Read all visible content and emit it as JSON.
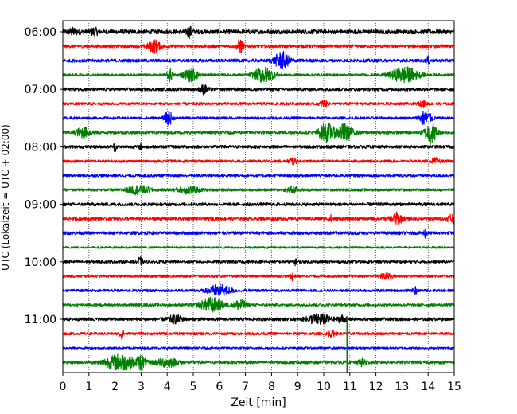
{
  "chart_data": {
    "type": "line",
    "title": "",
    "xlabel": "Zeit  [min]",
    "ylabel": "UTC (Lokalzeit = UTC + 02:00)",
    "xlim": [
      0,
      15
    ],
    "x_ticks": [
      0,
      1,
      2,
      3,
      4,
      5,
      6,
      7,
      8,
      9,
      10,
      11,
      12,
      13,
      14,
      15
    ],
    "x_tick_labels": [
      "0",
      "1",
      "2",
      "3",
      "4",
      "5",
      "6",
      "7",
      "8",
      "9",
      "10",
      "11",
      "12",
      "13",
      "14",
      "15"
    ],
    "y_tick_labels": [
      {
        "label": "06:00",
        "row": 0
      },
      {
        "label": "07:00",
        "row": 4
      },
      {
        "label": "08:00",
        "row": 8
      },
      {
        "label": "09:00",
        "row": 12
      },
      {
        "label": "10:00",
        "row": 16
      },
      {
        "label": "11:00",
        "row": 20
      }
    ],
    "grid": {
      "x": true,
      "style": "dotted"
    },
    "legend": "none",
    "row_colors": [
      "#000000",
      "#ff0000",
      "#0000ff",
      "#008000"
    ],
    "rows": [
      {
        "start": "06:00",
        "color": "#000000",
        "base_amp": 0.16,
        "events": [
          {
            "t": 0.4,
            "a": 0.2,
            "w": 0.15
          },
          {
            "t": 1.2,
            "a": 0.25,
            "w": 0.1
          },
          {
            "t": 4.85,
            "a": 0.35,
            "w": 0.08
          }
        ]
      },
      {
        "start": "06:15",
        "color": "#ff0000",
        "base_amp": 0.12,
        "events": [
          {
            "t": 3.5,
            "a": 0.45,
            "w": 0.15
          },
          {
            "t": 6.8,
            "a": 0.5,
            "w": 0.08
          }
        ]
      },
      {
        "start": "06:30",
        "color": "#0000ff",
        "base_amp": 0.12,
        "events": [
          {
            "t": 8.4,
            "a": 0.6,
            "w": 0.2
          },
          {
            "t": 14.0,
            "a": 0.25,
            "w": 0.05
          }
        ]
      },
      {
        "start": "06:45",
        "color": "#008000",
        "base_amp": 0.1,
        "events": [
          {
            "t": 4.1,
            "a": 0.5,
            "w": 0.06
          },
          {
            "t": 4.9,
            "a": 0.45,
            "w": 0.2
          },
          {
            "t": 7.7,
            "a": 0.55,
            "w": 0.25
          },
          {
            "t": 13.1,
            "a": 0.55,
            "w": 0.35
          }
        ]
      },
      {
        "start": "07:00",
        "color": "#000000",
        "base_amp": 0.12,
        "events": [
          {
            "t": 5.4,
            "a": 0.3,
            "w": 0.1
          }
        ]
      },
      {
        "start": "07:15",
        "color": "#ff0000",
        "base_amp": 0.1,
        "events": [
          {
            "t": 10.0,
            "a": 0.25,
            "w": 0.1
          },
          {
            "t": 13.8,
            "a": 0.2,
            "w": 0.1
          }
        ]
      },
      {
        "start": "07:30",
        "color": "#0000ff",
        "base_amp": 0.1,
        "events": [
          {
            "t": 4.05,
            "a": 0.5,
            "w": 0.1
          },
          {
            "t": 13.9,
            "a": 0.55,
            "w": 0.15
          }
        ]
      },
      {
        "start": "07:45",
        "color": "#008000",
        "base_amp": 0.12,
        "events": [
          {
            "t": 0.8,
            "a": 0.35,
            "w": 0.2
          },
          {
            "t": 10.1,
            "a": 0.65,
            "w": 0.2
          },
          {
            "t": 10.8,
            "a": 0.6,
            "w": 0.2
          },
          {
            "t": 14.1,
            "a": 0.8,
            "w": 0.15
          }
        ]
      },
      {
        "start": "08:00",
        "color": "#000000",
        "base_amp": 0.12,
        "events": [
          {
            "t": 2.0,
            "a": 0.3,
            "w": 0.04
          },
          {
            "t": 3.0,
            "a": 0.25,
            "w": 0.04
          }
        ]
      },
      {
        "start": "08:15",
        "color": "#ff0000",
        "base_amp": 0.1,
        "events": [
          {
            "t": 8.8,
            "a": 0.25,
            "w": 0.1
          },
          {
            "t": 14.3,
            "a": 0.2,
            "w": 0.1
          }
        ]
      },
      {
        "start": "08:30",
        "color": "#0000ff",
        "base_amp": 0.1,
        "events": []
      },
      {
        "start": "08:45",
        "color": "#008000",
        "base_amp": 0.1,
        "events": [
          {
            "t": 2.9,
            "a": 0.3,
            "w": 0.3
          },
          {
            "t": 4.8,
            "a": 0.25,
            "w": 0.3
          },
          {
            "t": 8.8,
            "a": 0.25,
            "w": 0.15
          }
        ]
      },
      {
        "start": "09:00",
        "color": "#000000",
        "base_amp": 0.12,
        "events": []
      },
      {
        "start": "09:15",
        "color": "#ff0000",
        "base_amp": 0.12,
        "events": [
          {
            "t": 10.3,
            "a": 0.25,
            "w": 0.05
          },
          {
            "t": 12.8,
            "a": 0.4,
            "w": 0.15
          },
          {
            "t": 14.9,
            "a": 0.35,
            "w": 0.1
          }
        ]
      },
      {
        "start": "09:30",
        "color": "#0000ff",
        "base_amp": 0.12,
        "events": [
          {
            "t": 13.9,
            "a": 0.3,
            "w": 0.05
          }
        ]
      },
      {
        "start": "09:45",
        "color": "#008000",
        "base_amp": 0.08,
        "events": []
      },
      {
        "start": "10:00",
        "color": "#000000",
        "base_amp": 0.1,
        "events": [
          {
            "t": 2.95,
            "a": 0.3,
            "w": 0.08
          },
          {
            "t": 8.9,
            "a": 0.2,
            "w": 0.05
          }
        ]
      },
      {
        "start": "10:15",
        "color": "#ff0000",
        "base_amp": 0.1,
        "events": [
          {
            "t": 8.8,
            "a": 0.25,
            "w": 0.05
          },
          {
            "t": 12.4,
            "a": 0.2,
            "w": 0.15
          }
        ]
      },
      {
        "start": "10:30",
        "color": "#0000ff",
        "base_amp": 0.1,
        "events": [
          {
            "t": 6.0,
            "a": 0.4,
            "w": 0.3
          },
          {
            "t": 13.5,
            "a": 0.25,
            "w": 0.05
          }
        ]
      },
      {
        "start": "10:45",
        "color": "#008000",
        "base_amp": 0.1,
        "events": [
          {
            "t": 5.7,
            "a": 0.5,
            "w": 0.3
          },
          {
            "t": 6.8,
            "a": 0.4,
            "w": 0.15
          }
        ]
      },
      {
        "start": "11:00",
        "color": "#000000",
        "base_amp": 0.12,
        "events": [
          {
            "t": 4.3,
            "a": 0.25,
            "w": 0.2
          },
          {
            "t": 9.8,
            "a": 0.35,
            "w": 0.3
          },
          {
            "t": 10.7,
            "a": 0.25,
            "w": 0.1
          }
        ]
      },
      {
        "start": "11:15",
        "color": "#ff0000",
        "base_amp": 0.1,
        "events": [
          {
            "t": 2.25,
            "a": 0.4,
            "w": 0.05
          },
          {
            "t": 10.3,
            "a": 0.2,
            "w": 0.1
          }
        ]
      },
      {
        "start": "11:30",
        "color": "#0000ff",
        "base_amp": 0.08,
        "events": []
      },
      {
        "start": "11:45",
        "color": "#008000",
        "base_amp": 0.12,
        "events": [
          {
            "t": 2.2,
            "a": 0.55,
            "w": 0.4
          },
          {
            "t": 3.0,
            "a": 0.5,
            "w": 0.1
          },
          {
            "t": 4.0,
            "a": 0.3,
            "w": 0.3
          },
          {
            "t": 11.5,
            "a": 0.3,
            "w": 0.1
          }
        ]
      }
    ],
    "spikes": [
      {
        "row": 20,
        "t": 10.9,
        "color": "#008000",
        "y_from_row": 20,
        "y_to_row": 23.9
      }
    ]
  }
}
